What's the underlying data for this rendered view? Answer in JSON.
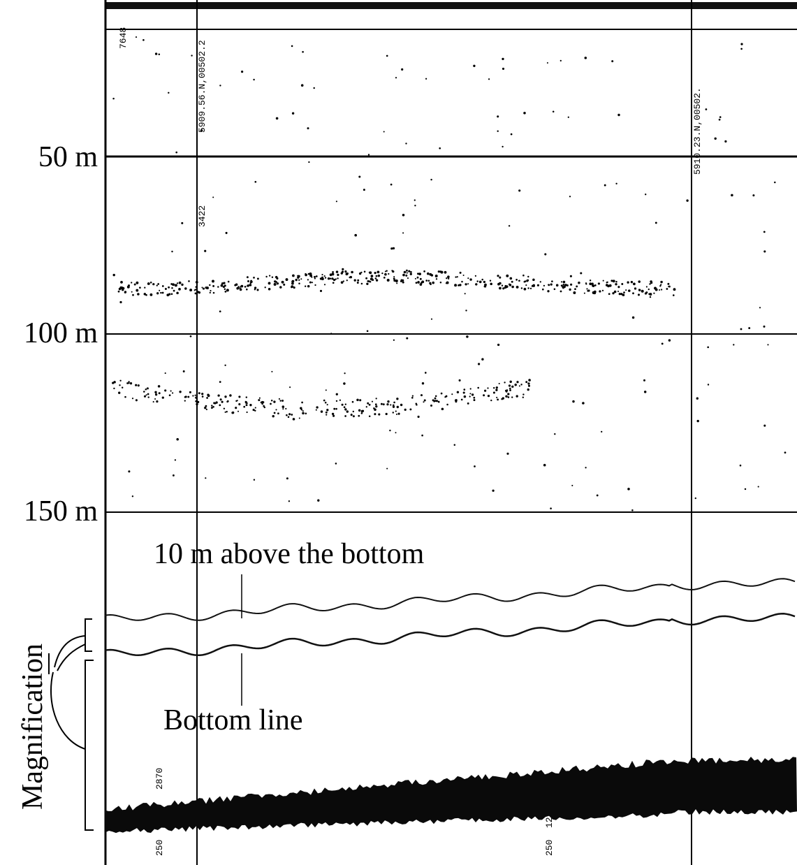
{
  "depth_labels": [
    "50 m",
    "100 m",
    "150 m"
  ],
  "annotations": {
    "upper_line": "10 m above the bottom",
    "bottom_line": "Bottom line",
    "magnification": "Magnification"
  },
  "markers": [
    "7648",
    "5909.56.N,00502.2",
    "3422",
    "5910.23.N,00502.",
    "2870",
    "250",
    "12",
    "250"
  ]
}
